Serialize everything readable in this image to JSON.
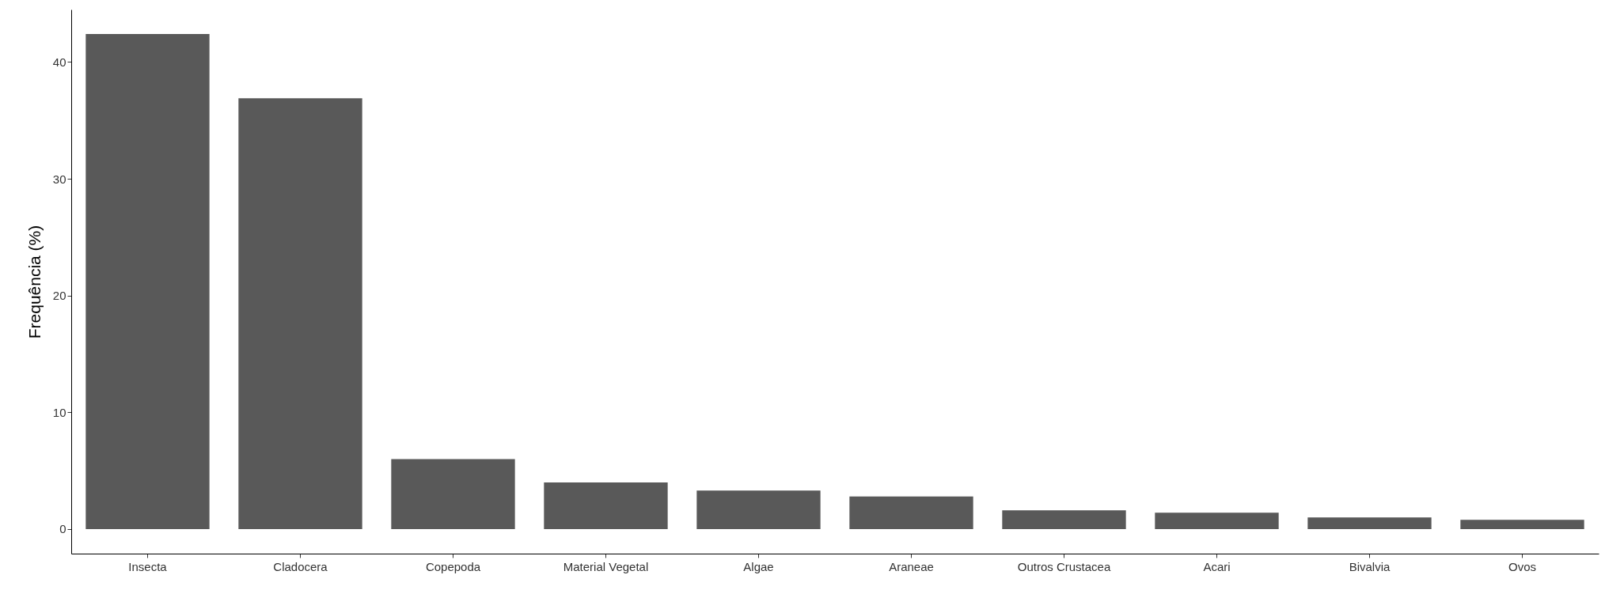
{
  "chart_data": {
    "type": "bar",
    "ylabel": "Frequência (%)",
    "categories": [
      "Insecta",
      "Cladocera",
      "Copepoda",
      "Material Vegetal",
      "Algae",
      "Araneae",
      "Outros Crustacea",
      "Acari",
      "Bivalvia",
      "Ovos"
    ],
    "values": [
      42.4,
      36.9,
      6.0,
      4.0,
      3.3,
      2.8,
      1.6,
      1.4,
      1.0,
      0.8
    ],
    "color": "#595959",
    "ylim": [
      -2.1,
      44.5
    ],
    "yticks": [
      0,
      10,
      20,
      30,
      40
    ],
    "grid": false
  }
}
